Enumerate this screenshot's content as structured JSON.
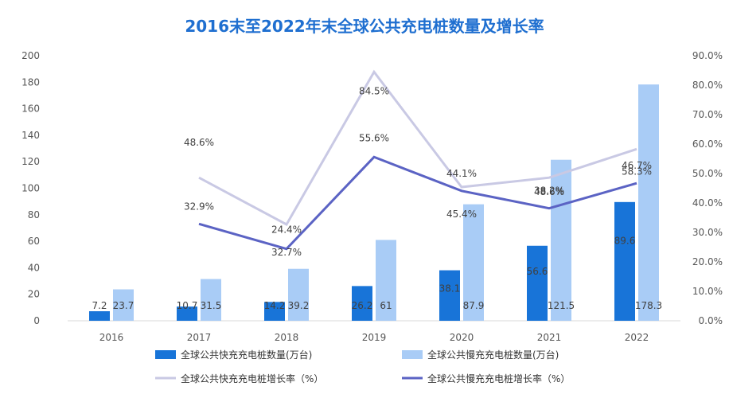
{
  "chart_data": {
    "type": "bar",
    "title": "2016末至2022年末全球公共充电桩数量及增长率",
    "categories": [
      "2016",
      "2017",
      "2018",
      "2019",
      "2020",
      "2021",
      "2022"
    ],
    "y_left": {
      "min": 0,
      "max": 200,
      "ticks": [
        "0",
        "20",
        "40",
        "60",
        "80",
        "100",
        "120",
        "140",
        "160",
        "180",
        "200"
      ]
    },
    "y_right": {
      "min": 0,
      "max": 90,
      "ticks": [
        "0.0%",
        "10.0%",
        "20.0%",
        "30.0%",
        "40.0%",
        "50.0%",
        "60.0%",
        "70.0%",
        "80.0%",
        "90.0%"
      ]
    },
    "grid": false,
    "legend_position": "bottom",
    "series": [
      {
        "name": "全球公共快充充电桩数量(万台)",
        "kind": "bar",
        "axis": "left",
        "color": "#1874d8",
        "values": [
          7.2,
          10.7,
          14.2,
          26.2,
          38.1,
          56.6,
          89.6
        ],
        "labels": [
          "7.2",
          "10.7",
          "14.2",
          "26.2",
          "38.1",
          "56.6",
          "89.6"
        ]
      },
      {
        "name": "全球公共慢充充电桩数量(万台)",
        "kind": "bar",
        "axis": "left",
        "color": "#a9ccf6",
        "values": [
          23.7,
          31.5,
          39.2,
          61,
          87.9,
          121.5,
          178.3
        ],
        "labels": [
          "23.7",
          "31.5",
          "39.2",
          "61",
          "87.9",
          "121.5",
          "178.3"
        ]
      },
      {
        "name": "全球公共快充充电桩增长率（%）",
        "kind": "line",
        "axis": "right",
        "color": "#c9c9e4",
        "values": [
          null,
          48.6,
          32.7,
          84.5,
          45.4,
          48.6,
          58.3
        ],
        "labels": [
          "",
          "48.6%",
          "32.7%",
          "84.5%",
          "45.4%",
          "48.6%",
          "58.3%"
        ]
      },
      {
        "name": "全球公共慢充充电桩增长率（%）",
        "kind": "line",
        "axis": "right",
        "color": "#5b63c4",
        "values": [
          null,
          32.9,
          24.4,
          55.6,
          44.1,
          38.2,
          46.7
        ],
        "labels": [
          "",
          "32.9%",
          "24.4%",
          "55.6%",
          "44.1%",
          "38.2%",
          "46.7%"
        ]
      }
    ]
  }
}
